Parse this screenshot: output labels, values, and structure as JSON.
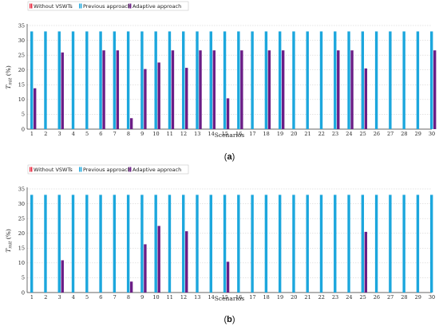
{
  "chart_data": [
    {
      "type": "bar",
      "caption_letter": "a",
      "xlabel": "Scenarios",
      "ylabel": "T",
      "ylabel_sub": "mit",
      "ylabel_unit": "(%)",
      "ylim": [
        0,
        35
      ],
      "yticks": [
        "0",
        "5",
        "10",
        "15",
        "20",
        "25",
        "30",
        "35"
      ],
      "grid": "horizontal dashed",
      "legend_position": "top-left",
      "categories": [
        "1",
        "2",
        "3",
        "4",
        "5",
        "6",
        "7",
        "8",
        "9",
        "10",
        "11",
        "12",
        "13",
        "14",
        "15",
        "16",
        "17",
        "18",
        "19",
        "20",
        "21",
        "22",
        "23",
        "24",
        "25",
        "26",
        "27",
        "28",
        "29",
        "30"
      ],
      "series": [
        {
          "name": "Without VSWTs",
          "color": "#e8233a",
          "values": [
            0,
            0,
            0,
            0,
            0,
            0,
            0,
            0,
            0,
            0,
            0,
            0,
            0,
            0,
            0,
            0,
            0,
            0,
            0,
            0,
            0,
            0,
            0,
            0,
            0,
            0,
            0,
            0,
            0,
            0
          ]
        },
        {
          "name": "Previous approach",
          "color": "#1ca7dd",
          "values": [
            33,
            33,
            33,
            33,
            33,
            33,
            33,
            33,
            33,
            33,
            33,
            33,
            33,
            33,
            33,
            33,
            33,
            33,
            33,
            33,
            33,
            33,
            33,
            33,
            33,
            33,
            33,
            33,
            33,
            33
          ]
        },
        {
          "name": "Adaptive approach",
          "color": "#6b1d86",
          "values": [
            13.8,
            0,
            25.9,
            0,
            0,
            26.6,
            26.6,
            3.7,
            20.3,
            22.5,
            26.6,
            20.7,
            26.6,
            26.6,
            10.4,
            26.6,
            0,
            26.6,
            26.6,
            0,
            0,
            0,
            26.6,
            26.6,
            20.5,
            0,
            0,
            0,
            0,
            26.6
          ]
        }
      ]
    },
    {
      "type": "bar",
      "caption_letter": "b",
      "xlabel": "Scenarios",
      "ylabel": "T",
      "ylabel_sub": "mit",
      "ylabel_unit": "(%)",
      "ylim": [
        0,
        35
      ],
      "yticks": [
        "0",
        "5",
        "10",
        "15",
        "20",
        "25",
        "30",
        "35"
      ],
      "grid": "horizontal dashed",
      "legend_position": "top-left",
      "categories": [
        "1",
        "2",
        "3",
        "4",
        "5",
        "6",
        "7",
        "8",
        "9",
        "10",
        "11",
        "12",
        "13",
        "14",
        "15",
        "16",
        "17",
        "18",
        "19",
        "20",
        "21",
        "22",
        "23",
        "24",
        "25",
        "26",
        "27",
        "28",
        "29",
        "30"
      ],
      "series": [
        {
          "name": "Without VSWTs",
          "color": "#e8233a",
          "values": [
            0,
            0,
            0,
            0,
            0,
            0,
            0,
            0,
            0,
            0,
            0,
            0,
            0,
            0,
            0,
            0,
            0,
            0,
            0,
            0,
            0,
            0,
            0,
            0,
            0,
            0,
            0,
            0,
            0,
            0
          ]
        },
        {
          "name": "Previous approach",
          "color": "#1ca7dd",
          "values": [
            33,
            33,
            33,
            33,
            33,
            33,
            33,
            33,
            33,
            33,
            33,
            33,
            33,
            33,
            33,
            33,
            33,
            33,
            33,
            33,
            33,
            33,
            33,
            33,
            33,
            33,
            33,
            33,
            33,
            33
          ]
        },
        {
          "name": "Adaptive approach",
          "color": "#6b1d86",
          "values": [
            0,
            0,
            10.9,
            0,
            0,
            0,
            0,
            3.7,
            16.3,
            22.5,
            0,
            20.7,
            0,
            0,
            10.4,
            0,
            0,
            0,
            0,
            0,
            0,
            0,
            0,
            0,
            20.5,
            0,
            0,
            0,
            0,
            0
          ]
        }
      ]
    }
  ]
}
